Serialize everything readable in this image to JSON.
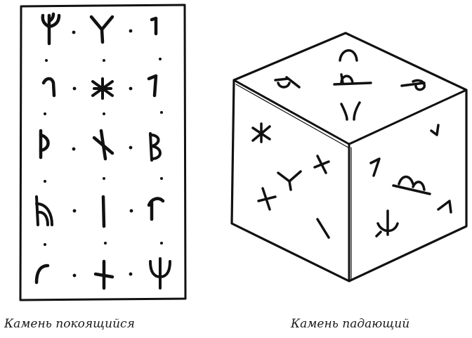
{
  "figure": {
    "ink_color": "#111111",
    "background": "#ffffff",
    "captions": {
      "left": "Камень покоящийся",
      "right": "Камень падающий"
    },
    "resting_stone": {
      "rows": 5,
      "columns": 3,
      "glyphs": [
        "fork-rune",
        "y-rune",
        "tick-rune",
        "hook-rune",
        "asterisk-rune",
        "slash-rune",
        "thorn-rune",
        "cross-slash-rune",
        "b-rune",
        "arch-rune",
        "bar-rune",
        "flag-rune",
        "curl-rune",
        "plus-slash-rune",
        "trident-rune"
      ]
    },
    "falling_stone": {
      "faces": [
        "top-face",
        "left-face",
        "right-face"
      ]
    }
  }
}
